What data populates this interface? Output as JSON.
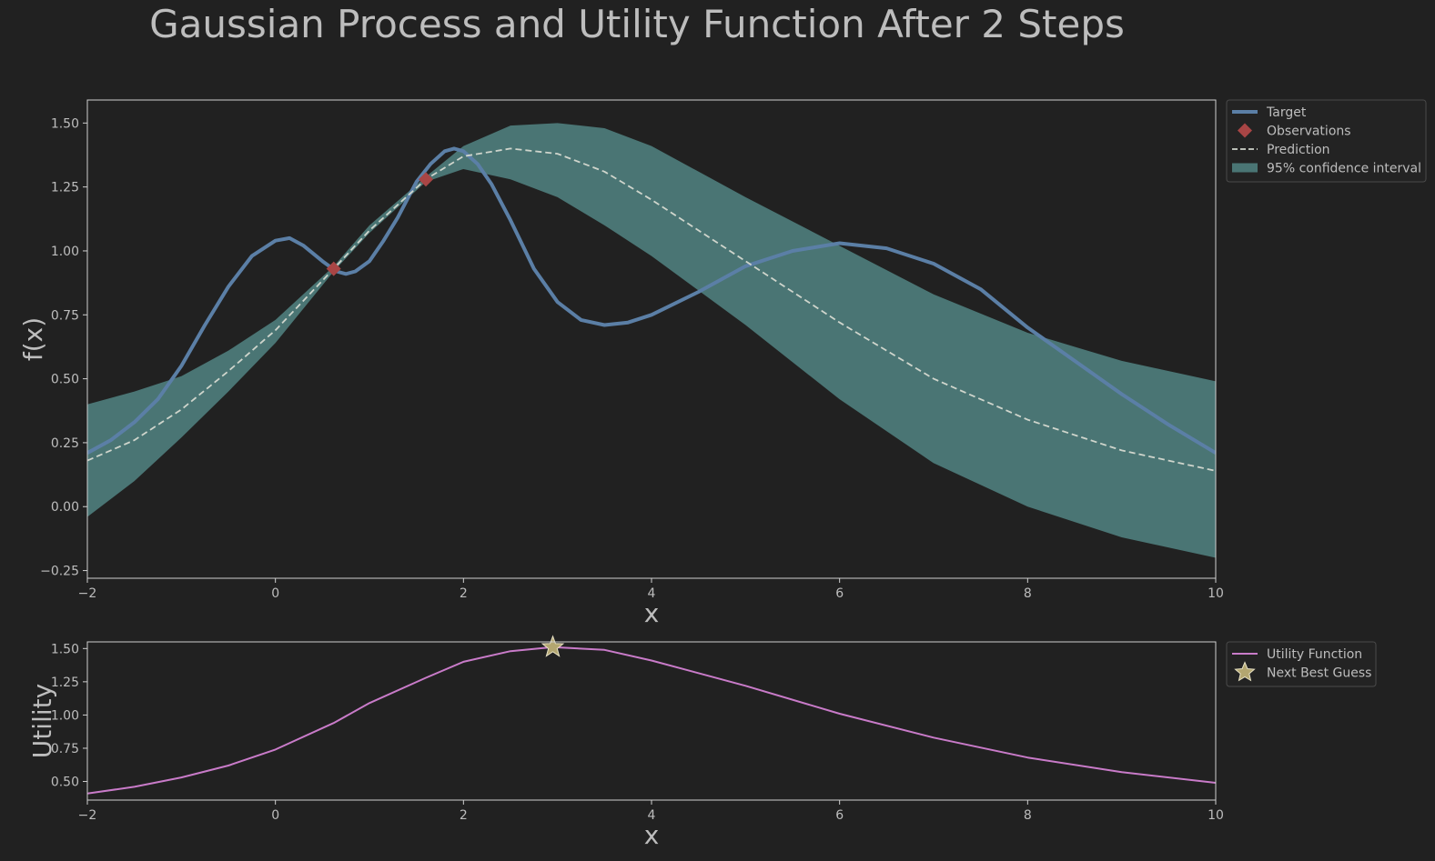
{
  "title": "Gaussian Process and Utility Function After 2 Steps",
  "colors": {
    "background": "#212121",
    "axes": "#cfcfcf",
    "text": "#bdbdbd",
    "target": "#5b7fa6",
    "observation": "#a84545",
    "prediction": "#cfd5cc",
    "confidence": "#4a7574",
    "utility": "#c97bc9",
    "next_guess": "#b3a670"
  },
  "chart_data": [
    {
      "type": "line",
      "xlabel": "x",
      "ylabel": "f(x)",
      "xlim": [
        -2,
        10
      ],
      "ylim": [
        -0.28,
        1.59
      ],
      "x_ticks": [
        -2,
        0,
        2,
        4,
        6,
        8,
        10
      ],
      "y_ticks": [
        -0.25,
        0.0,
        0.25,
        0.5,
        0.75,
        1.0,
        1.25,
        1.5
      ],
      "x_tick_labels": [
        "−2",
        "0",
        "2",
        "4",
        "6",
        "8",
        "10"
      ],
      "y_tick_labels": [
        "−0.25",
        "0.00",
        "0.25",
        "0.50",
        "0.75",
        "1.00",
        "1.25",
        "1.50"
      ],
      "legend_position": "outside-top-right",
      "grid": false,
      "series": [
        {
          "name": "Target",
          "kind": "line",
          "x": [
            -2,
            -1.75,
            -1.5,
            -1.25,
            -1,
            -0.75,
            -0.5,
            -0.25,
            0,
            0.15,
            0.3,
            0.5,
            0.65,
            0.75,
            0.85,
            1,
            1.15,
            1.3,
            1.5,
            1.65,
            1.8,
            1.9,
            2,
            2.15,
            2.3,
            2.5,
            2.75,
            3,
            3.25,
            3.5,
            3.75,
            4,
            4.5,
            5,
            5.5,
            6,
            6.5,
            7,
            7.5,
            8,
            8.5,
            9,
            9.5,
            10
          ],
          "y": [
            0.21,
            0.26,
            0.33,
            0.42,
            0.55,
            0.71,
            0.86,
            0.98,
            1.04,
            1.05,
            1.02,
            0.96,
            0.92,
            0.91,
            0.92,
            0.96,
            1.04,
            1.13,
            1.27,
            1.34,
            1.39,
            1.4,
            1.39,
            1.34,
            1.26,
            1.12,
            0.93,
            0.8,
            0.73,
            0.71,
            0.72,
            0.75,
            0.84,
            0.94,
            1.0,
            1.03,
            1.01,
            0.95,
            0.85,
            0.7,
            0.57,
            0.44,
            0.32,
            0.21
          ]
        },
        {
          "name": "Observations",
          "kind": "marker",
          "x": [
            0.62,
            1.6
          ],
          "y": [
            0.93,
            1.28
          ]
        },
        {
          "name": "Prediction",
          "kind": "dashed",
          "x": [
            -2,
            -1.5,
            -1,
            -0.5,
            0,
            0.62,
            1,
            1.6,
            2,
            2.5,
            3,
            3.5,
            4,
            5,
            6,
            7,
            8,
            9,
            10
          ],
          "y": [
            0.18,
            0.26,
            0.38,
            0.53,
            0.69,
            0.93,
            1.08,
            1.28,
            1.37,
            1.4,
            1.38,
            1.31,
            1.2,
            0.96,
            0.72,
            0.5,
            0.34,
            0.22,
            0.14
          ]
        },
        {
          "name": "95% confidence interval",
          "kind": "band",
          "x": [
            -2,
            -1.5,
            -1,
            -0.5,
            0,
            0.62,
            1,
            1.6,
            2,
            2.5,
            3,
            3.5,
            4,
            5,
            6,
            7,
            8,
            9,
            10
          ],
          "lower": [
            -0.04,
            0.1,
            0.27,
            0.45,
            0.64,
            0.92,
            1.07,
            1.27,
            1.32,
            1.28,
            1.21,
            1.1,
            0.98,
            0.71,
            0.42,
            0.17,
            0.0,
            -0.12,
            -0.2
          ],
          "upper": [
            0.4,
            0.45,
            0.51,
            0.61,
            0.73,
            0.94,
            1.1,
            1.29,
            1.41,
            1.49,
            1.5,
            1.48,
            1.41,
            1.21,
            1.02,
            0.83,
            0.68,
            0.57,
            0.49
          ]
        }
      ]
    },
    {
      "type": "line",
      "xlabel": "x",
      "ylabel": "Utility",
      "xlim": [
        -2,
        10
      ],
      "ylim": [
        0.36,
        1.55
      ],
      "x_ticks": [
        -2,
        0,
        2,
        4,
        6,
        8,
        10
      ],
      "y_ticks": [
        0.5,
        0.75,
        1.0,
        1.25,
        1.5
      ],
      "x_tick_labels": [
        "−2",
        "0",
        "2",
        "4",
        "6",
        "8",
        "10"
      ],
      "y_tick_labels": [
        "0.50",
        "0.75",
        "1.00",
        "1.25",
        "1.50"
      ],
      "legend_position": "outside-top-right",
      "grid": false,
      "series": [
        {
          "name": "Utility Function",
          "kind": "line",
          "x": [
            -2,
            -1.5,
            -1,
            -0.5,
            0,
            0.62,
            1,
            1.6,
            2,
            2.5,
            2.95,
            3.5,
            4,
            5,
            6,
            7,
            8,
            9,
            10
          ],
          "y": [
            0.41,
            0.46,
            0.53,
            0.62,
            0.74,
            0.94,
            1.09,
            1.28,
            1.4,
            1.48,
            1.51,
            1.49,
            1.41,
            1.22,
            1.01,
            0.83,
            0.68,
            0.57,
            0.49
          ]
        },
        {
          "name": "Next Best Guess",
          "kind": "star",
          "x": [
            2.95
          ],
          "y": [
            1.51
          ]
        }
      ]
    }
  ]
}
